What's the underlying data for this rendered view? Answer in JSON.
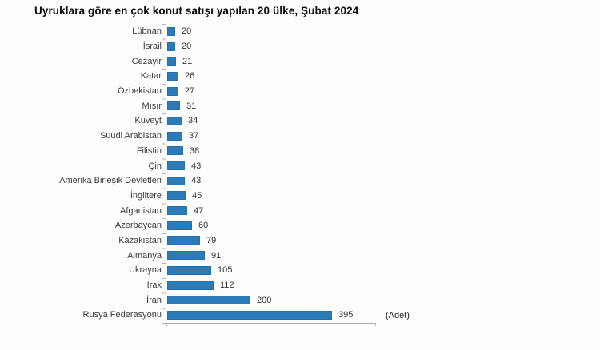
{
  "title": "Uyruklara göre en çok konut satışı yapılan 20 ülke, Şubat 2024",
  "unit_label": "(Adet)",
  "colors": {
    "bar": "#2b7bb9",
    "bar_edge": "#2471ad",
    "axis": "#b3b3b3",
    "background": "#fdfdfd"
  },
  "chart_data": {
    "type": "bar",
    "orientation": "horizontal",
    "title": "Uyruklara göre en çok konut satışı yapılan 20 ülke, Şubat 2024",
    "xlabel": "(Adet)",
    "ylabel": "",
    "xlim": [
      0,
      500
    ],
    "grid": false,
    "legend": false,
    "value_labels_shown": true,
    "categories": [
      "Lübnan",
      "İsrail",
      "Cezayir",
      "Katar",
      "Özbekistan",
      "Mısır",
      "Kuveyt",
      "Suudi Arabistan",
      "Filistin",
      "Çin",
      "Amerika Birleşik Devletleri",
      "İngiltere",
      "Afganistan",
      "Azerbaycan",
      "Kazakistan",
      "Almanya",
      "Ukrayna",
      "Irak",
      "İran",
      "Rusya Federasyonu"
    ],
    "values": [
      20,
      20,
      21,
      26,
      27,
      31,
      34,
      37,
      38,
      43,
      43,
      45,
      47,
      60,
      79,
      91,
      105,
      112,
      200,
      395
    ]
  }
}
